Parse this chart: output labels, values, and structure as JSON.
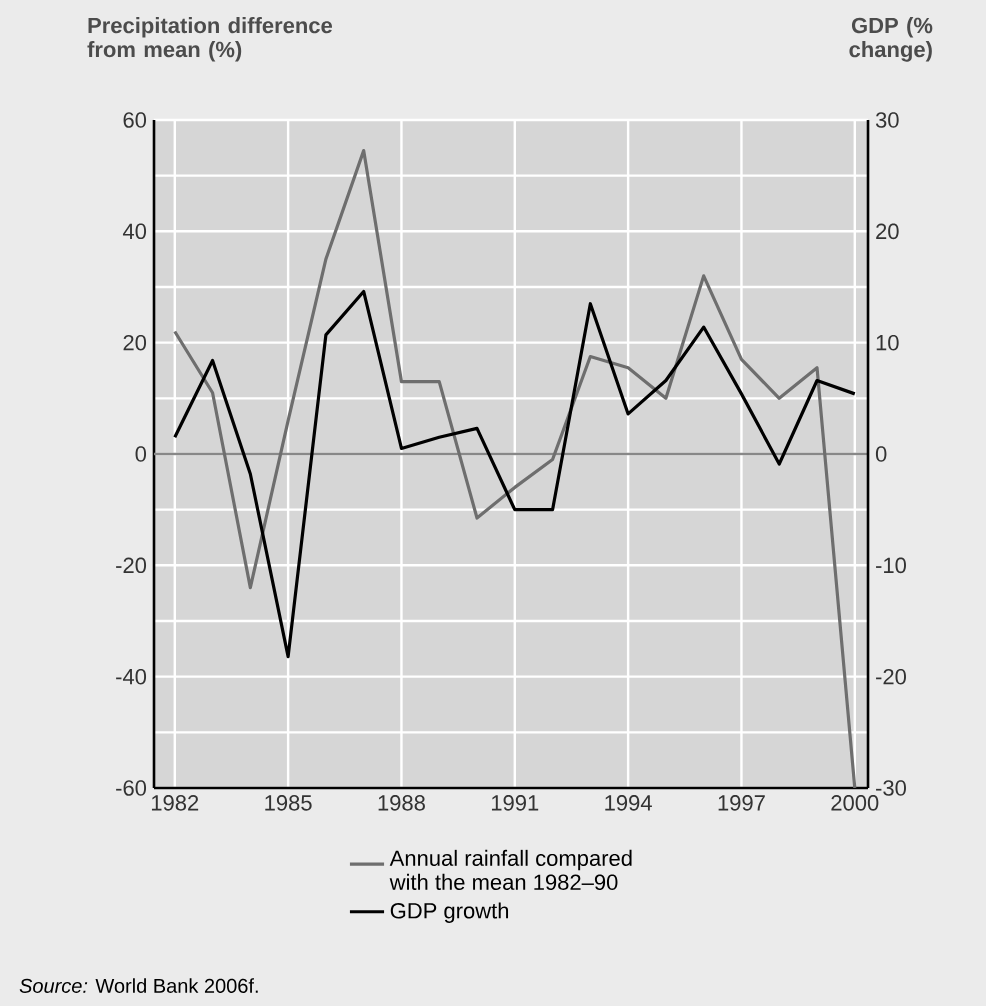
{
  "chart_data": {
    "type": "line",
    "ylabel": "Precipitation difference from mean (%)",
    "y2label": "GDP (% change)",
    "x": [
      1982,
      1983,
      1984,
      1985,
      1986,
      1987,
      1988,
      1989,
      1990,
      1991,
      1992,
      1993,
      1994,
      1995,
      1996,
      1997,
      1998,
      1999,
      2000
    ],
    "series": [
      {
        "name": "Annual rainfall compared with the mean 1982–90",
        "color": "#6e6e6e",
        "values": [
          22,
          11,
          -24,
          6,
          35,
          54.5,
          13,
          13,
          -11.5,
          -6,
          -1,
          17.5,
          15.5,
          10,
          32,
          17,
          10,
          15.5,
          -60
        ]
      },
      {
        "name": "GDP growth",
        "color": "#000000",
        "axis": "y2",
        "values": [
          1.5,
          8.4,
          -1.8,
          -18.2,
          10.7,
          14.6,
          0.5,
          1.5,
          2.3,
          -5,
          -5,
          13.5,
          3.6,
          6.6,
          11.4,
          5.4,
          -0.9,
          6.6,
          5.4
        ]
      }
    ],
    "xlim": [
      1981.45,
      2000.35
    ],
    "xticks": [
      1982,
      1985,
      1988,
      1991,
      1994,
      1997,
      2000
    ],
    "ylim": [
      -60,
      60
    ],
    "yticks": [
      -60,
      {
        "value": -50,
        "label": null
      },
      -40,
      {
        "value": -30,
        "label": null
      },
      -20,
      {
        "value": -10,
        "label": null
      },
      0,
      {
        "value": 10,
        "label": null
      },
      20,
      {
        "value": 30,
        "label": null
      },
      40,
      {
        "value": 50,
        "label": null
      },
      60
    ],
    "y2lim": [
      -30,
      30
    ],
    "y2ticks": [
      -30,
      -20,
      -10,
      0,
      10,
      20,
      30
    ],
    "ref_lines": [
      {
        "axis": "y",
        "value": 0,
        "color": "#888888"
      }
    ],
    "grid": true,
    "legend": "bottom",
    "annotations": [
      "*Source:* World Bank 2006f."
    ]
  }
}
